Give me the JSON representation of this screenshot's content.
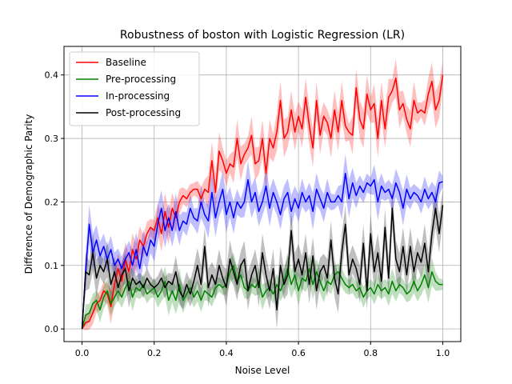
{
  "chart_data": {
    "type": "line",
    "title": "Robustness of boston with Logistic Regression (LR)",
    "xlabel": "Noise Level",
    "ylabel": "Difference of Demographic Parity",
    "xlim": [
      -0.05,
      1.05
    ],
    "ylim": [
      -0.02,
      0.445
    ],
    "xticks": [
      0.0,
      0.2,
      0.4,
      0.6,
      0.8,
      1.0
    ],
    "xtick_labels": [
      "0.0",
      "0.2",
      "0.4",
      "0.6",
      "0.8",
      "1.0"
    ],
    "yticks": [
      0.0,
      0.1,
      0.2,
      0.3,
      0.4
    ],
    "ytick_labels": [
      "0.0",
      "0.1",
      "0.2",
      "0.3",
      "0.4"
    ],
    "grid": true,
    "legend_position": "top-left",
    "series": [
      {
        "name": "Baseline",
        "color": "#ff0000",
        "x": [
          0.0,
          0.01,
          0.02,
          0.03,
          0.04,
          0.05,
          0.06,
          0.07,
          0.08,
          0.09,
          0.1,
          0.11,
          0.12,
          0.13,
          0.14,
          0.15,
          0.16,
          0.17,
          0.18,
          0.19,
          0.2,
          0.21,
          0.22,
          0.23,
          0.24,
          0.25,
          0.26,
          0.27,
          0.28,
          0.29,
          0.3,
          0.31,
          0.32,
          0.33,
          0.34,
          0.35,
          0.36,
          0.37,
          0.38,
          0.39,
          0.4,
          0.41,
          0.42,
          0.43,
          0.44,
          0.45,
          0.46,
          0.47,
          0.48,
          0.49,
          0.5,
          0.51,
          0.52,
          0.53,
          0.54,
          0.55,
          0.56,
          0.57,
          0.58,
          0.59,
          0.6,
          0.61,
          0.62,
          0.63,
          0.64,
          0.65,
          0.66,
          0.67,
          0.68,
          0.69,
          0.7,
          0.71,
          0.72,
          0.73,
          0.74,
          0.75,
          0.76,
          0.77,
          0.78,
          0.79,
          0.8,
          0.81,
          0.82,
          0.83,
          0.84,
          0.85,
          0.86,
          0.87,
          0.88,
          0.89,
          0.9,
          0.91,
          0.92,
          0.93,
          0.94,
          0.95,
          0.96,
          0.97,
          0.98,
          0.99,
          1.0
        ],
        "y": [
          0.0,
          0.01,
          0.012,
          0.025,
          0.04,
          0.045,
          0.06,
          0.055,
          0.035,
          0.07,
          0.095,
          0.075,
          0.11,
          0.09,
          0.125,
          0.11,
          0.14,
          0.13,
          0.15,
          0.16,
          0.155,
          0.175,
          0.15,
          0.185,
          0.16,
          0.19,
          0.175,
          0.2,
          0.21,
          0.205,
          0.215,
          0.22,
          0.22,
          0.205,
          0.22,
          0.215,
          0.265,
          0.215,
          0.28,
          0.265,
          0.245,
          0.26,
          0.255,
          0.3,
          0.26,
          0.275,
          0.285,
          0.305,
          0.26,
          0.265,
          0.3,
          0.245,
          0.3,
          0.285,
          0.31,
          0.36,
          0.3,
          0.31,
          0.345,
          0.31,
          0.335,
          0.315,
          0.365,
          0.32,
          0.285,
          0.36,
          0.305,
          0.335,
          0.325,
          0.3,
          0.345,
          0.31,
          0.36,
          0.32,
          0.31,
          0.305,
          0.38,
          0.33,
          0.315,
          0.37,
          0.345,
          0.355,
          0.3,
          0.36,
          0.315,
          0.365,
          0.375,
          0.395,
          0.345,
          0.355,
          0.33,
          0.315,
          0.36,
          0.34,
          0.345,
          0.34,
          0.37,
          0.39,
          0.345,
          0.36,
          0.4
        ]
      },
      {
        "name": "Pre-processing",
        "color": "#008000",
        "x": [
          0.0,
          0.01,
          0.02,
          0.03,
          0.04,
          0.05,
          0.06,
          0.07,
          0.08,
          0.09,
          0.1,
          0.11,
          0.12,
          0.13,
          0.14,
          0.15,
          0.16,
          0.17,
          0.18,
          0.19,
          0.2,
          0.21,
          0.22,
          0.23,
          0.24,
          0.25,
          0.26,
          0.27,
          0.28,
          0.29,
          0.3,
          0.31,
          0.32,
          0.33,
          0.34,
          0.35,
          0.36,
          0.37,
          0.38,
          0.39,
          0.4,
          0.41,
          0.42,
          0.43,
          0.44,
          0.45,
          0.46,
          0.47,
          0.48,
          0.49,
          0.5,
          0.51,
          0.52,
          0.53,
          0.54,
          0.55,
          0.56,
          0.57,
          0.58,
          0.59,
          0.6,
          0.61,
          0.62,
          0.63,
          0.64,
          0.65,
          0.66,
          0.67,
          0.68,
          0.69,
          0.7,
          0.71,
          0.72,
          0.73,
          0.74,
          0.75,
          0.76,
          0.77,
          0.78,
          0.79,
          0.8,
          0.81,
          0.82,
          0.83,
          0.84,
          0.85,
          0.86,
          0.87,
          0.88,
          0.89,
          0.9,
          0.91,
          0.92,
          0.93,
          0.94,
          0.95,
          0.96,
          0.97,
          0.98,
          0.99,
          1.0
        ],
        "y": [
          0.0,
          0.022,
          0.025,
          0.04,
          0.045,
          0.03,
          0.05,
          0.06,
          0.04,
          0.05,
          0.06,
          0.05,
          0.065,
          0.075,
          0.05,
          0.065,
          0.06,
          0.07,
          0.055,
          0.06,
          0.065,
          0.05,
          0.06,
          0.075,
          0.045,
          0.06,
          0.045,
          0.07,
          0.045,
          0.055,
          0.065,
          0.05,
          0.06,
          0.045,
          0.06,
          0.055,
          0.05,
          0.065,
          0.07,
          0.065,
          0.07,
          0.09,
          0.1,
          0.075,
          0.085,
          0.065,
          0.06,
          0.07,
          0.065,
          0.075,
          0.05,
          0.06,
          0.065,
          0.055,
          0.07,
          0.06,
          0.075,
          0.095,
          0.07,
          0.085,
          0.06,
          0.08,
          0.075,
          0.095,
          0.07,
          0.09,
          0.075,
          0.06,
          0.075,
          0.07,
          0.085,
          0.09,
          0.08,
          0.07,
          0.065,
          0.07,
          0.06,
          0.065,
          0.05,
          0.06,
          0.065,
          0.055,
          0.07,
          0.06,
          0.065,
          0.055,
          0.075,
          0.06,
          0.07,
          0.065,
          0.055,
          0.06,
          0.075,
          0.06,
          0.07,
          0.085,
          0.065,
          0.09,
          0.075,
          0.07,
          0.07
        ]
      },
      {
        "name": "In-processing",
        "color": "#0000ff",
        "x": [
          0.0,
          0.01,
          0.02,
          0.03,
          0.04,
          0.05,
          0.06,
          0.07,
          0.08,
          0.09,
          0.1,
          0.11,
          0.12,
          0.13,
          0.14,
          0.15,
          0.16,
          0.17,
          0.18,
          0.19,
          0.2,
          0.21,
          0.22,
          0.23,
          0.24,
          0.25,
          0.26,
          0.27,
          0.28,
          0.29,
          0.3,
          0.31,
          0.32,
          0.33,
          0.34,
          0.35,
          0.36,
          0.37,
          0.38,
          0.39,
          0.4,
          0.41,
          0.42,
          0.43,
          0.44,
          0.45,
          0.46,
          0.47,
          0.48,
          0.49,
          0.5,
          0.51,
          0.52,
          0.53,
          0.54,
          0.55,
          0.56,
          0.57,
          0.58,
          0.59,
          0.6,
          0.61,
          0.62,
          0.63,
          0.64,
          0.65,
          0.66,
          0.67,
          0.68,
          0.69,
          0.7,
          0.71,
          0.72,
          0.73,
          0.74,
          0.75,
          0.76,
          0.77,
          0.78,
          0.79,
          0.8,
          0.81,
          0.82,
          0.83,
          0.84,
          0.85,
          0.86,
          0.87,
          0.88,
          0.89,
          0.9,
          0.91,
          0.92,
          0.93,
          0.94,
          0.95,
          0.96,
          0.97,
          0.98,
          0.99,
          1.0
        ],
        "y": [
          0.0,
          0.09,
          0.165,
          0.12,
          0.14,
          0.115,
          0.13,
          0.11,
          0.125,
          0.1,
          0.11,
          0.095,
          0.11,
          0.12,
          0.1,
          0.125,
          0.095,
          0.13,
          0.115,
          0.14,
          0.13,
          0.165,
          0.19,
          0.155,
          0.175,
          0.155,
          0.185,
          0.155,
          0.17,
          0.165,
          0.19,
          0.175,
          0.17,
          0.2,
          0.18,
          0.17,
          0.215,
          0.175,
          0.2,
          0.22,
          0.18,
          0.2,
          0.175,
          0.2,
          0.19,
          0.2,
          0.235,
          0.2,
          0.215,
          0.185,
          0.2,
          0.225,
          0.19,
          0.215,
          0.2,
          0.18,
          0.205,
          0.215,
          0.185,
          0.205,
          0.19,
          0.215,
          0.2,
          0.21,
          0.185,
          0.22,
          0.205,
          0.19,
          0.215,
          0.2,
          0.2,
          0.21,
          0.2,
          0.245,
          0.205,
          0.23,
          0.21,
          0.225,
          0.215,
          0.23,
          0.225,
          0.235,
          0.2,
          0.225,
          0.215,
          0.22,
          0.205,
          0.23,
          0.215,
          0.19,
          0.22,
          0.205,
          0.215,
          0.21,
          0.2,
          0.22,
          0.205,
          0.215,
          0.2,
          0.23,
          0.232
        ]
      },
      {
        "name": "Post-processing",
        "color": "#000000",
        "x": [
          0.0,
          0.01,
          0.02,
          0.03,
          0.04,
          0.05,
          0.06,
          0.07,
          0.08,
          0.09,
          0.1,
          0.11,
          0.12,
          0.13,
          0.14,
          0.15,
          0.16,
          0.17,
          0.18,
          0.19,
          0.2,
          0.21,
          0.22,
          0.23,
          0.24,
          0.25,
          0.26,
          0.27,
          0.28,
          0.29,
          0.3,
          0.31,
          0.32,
          0.33,
          0.34,
          0.35,
          0.36,
          0.37,
          0.38,
          0.39,
          0.4,
          0.41,
          0.42,
          0.43,
          0.44,
          0.45,
          0.46,
          0.47,
          0.48,
          0.49,
          0.5,
          0.51,
          0.52,
          0.53,
          0.54,
          0.55,
          0.56,
          0.57,
          0.58,
          0.59,
          0.6,
          0.61,
          0.62,
          0.63,
          0.64,
          0.65,
          0.66,
          0.67,
          0.68,
          0.69,
          0.7,
          0.71,
          0.72,
          0.73,
          0.74,
          0.75,
          0.76,
          0.77,
          0.78,
          0.79,
          0.8,
          0.81,
          0.82,
          0.83,
          0.84,
          0.85,
          0.86,
          0.87,
          0.88,
          0.89,
          0.9,
          0.91,
          0.92,
          0.93,
          0.94,
          0.95,
          0.96,
          0.97,
          0.98,
          0.99,
          1.0
        ],
        "y": [
          0.0,
          0.09,
          0.085,
          0.12,
          0.08,
          0.1,
          0.09,
          0.11,
          0.07,
          0.09,
          0.065,
          0.085,
          0.095,
          0.06,
          0.08,
          0.07,
          0.075,
          0.065,
          0.08,
          0.07,
          0.065,
          0.07,
          0.08,
          0.065,
          0.075,
          0.07,
          0.09,
          0.06,
          0.05,
          0.07,
          0.055,
          0.075,
          0.1,
          0.07,
          0.13,
          0.065,
          0.085,
          0.07,
          0.1,
          0.08,
          0.065,
          0.11,
          0.09,
          0.07,
          0.1,
          0.11,
          0.06,
          0.085,
          0.1,
          0.065,
          0.12,
          0.085,
          0.06,
          0.095,
          0.03,
          0.1,
          0.07,
          0.085,
          0.155,
          0.09,
          0.11,
          0.085,
          0.12,
          0.07,
          0.115,
          0.06,
          0.09,
          0.1,
          0.08,
          0.14,
          0.08,
          0.055,
          0.12,
          0.165,
          0.085,
          0.11,
          0.095,
          0.07,
          0.135,
          0.06,
          0.15,
          0.09,
          0.12,
          0.075,
          0.16,
          0.08,
          0.19,
          0.11,
          0.09,
          0.13,
          0.085,
          0.13,
          0.09,
          0.12,
          0.105,
          0.135,
          0.09,
          0.15,
          0.19,
          0.15,
          0.195
        ]
      }
    ]
  }
}
